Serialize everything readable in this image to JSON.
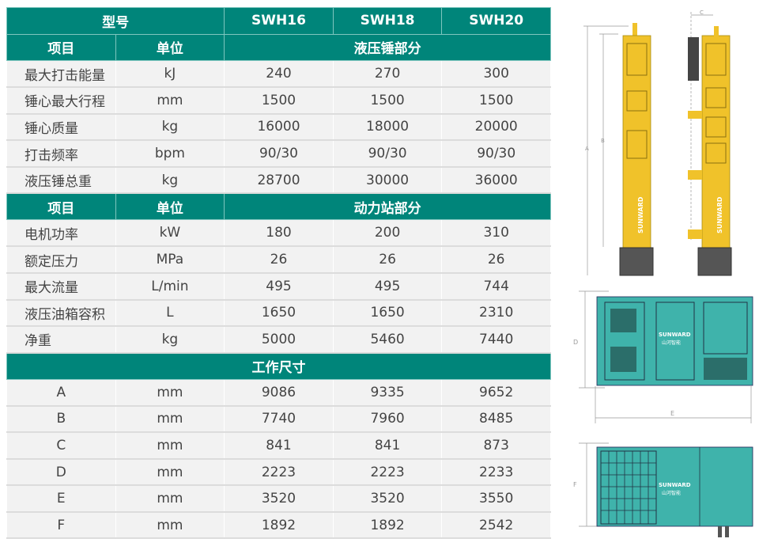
{
  "header": {
    "model_label": "型号",
    "models": [
      "SWH16",
      "SWH18",
      "SWH20"
    ]
  },
  "sections": [
    {
      "item_label": "项目",
      "unit_label": "单位",
      "title": "液压锤部分",
      "rows": [
        {
          "name": "最大打击能量",
          "unit": "kJ",
          "values": [
            "240",
            "270",
            "300"
          ]
        },
        {
          "name": "锤心最大行程",
          "unit": "mm",
          "values": [
            "1500",
            "1500",
            "1500"
          ]
        },
        {
          "name": "锤心质量",
          "unit": "kg",
          "values": [
            "16000",
            "18000",
            "20000"
          ]
        },
        {
          "name": "打击频率",
          "unit": "bpm",
          "values": [
            "90/30",
            "90/30",
            "90/30"
          ]
        },
        {
          "name": "液压锤总重",
          "unit": "kg",
          "values": [
            "28700",
            "30000",
            "36000"
          ]
        }
      ]
    },
    {
      "item_label": "项目",
      "unit_label": "单位",
      "title": "动力站部分",
      "rows": [
        {
          "name": "电机功率",
          "unit": "kW",
          "values": [
            "180",
            "200",
            "310"
          ]
        },
        {
          "name": "额定压力",
          "unit": "MPa",
          "values": [
            "26",
            "26",
            "26"
          ]
        },
        {
          "name": "最大流量",
          "unit": "L/min",
          "values": [
            "495",
            "495",
            "744"
          ]
        },
        {
          "name": "液压油箱容积",
          "unit": "L",
          "values": [
            "1650",
            "1650",
            "2310"
          ]
        },
        {
          "name": "净重",
          "unit": "kg",
          "values": [
            "5000",
            "5460",
            "7440"
          ]
        }
      ]
    },
    {
      "title": "工作尺寸",
      "rows": [
        {
          "name": "A",
          "unit": "mm",
          "values": [
            "9086",
            "9335",
            "9652"
          ]
        },
        {
          "name": "B",
          "unit": "mm",
          "values": [
            "7740",
            "7960",
            "8485"
          ]
        },
        {
          "name": "C",
          "unit": "mm",
          "values": [
            "841",
            "841",
            "873"
          ]
        },
        {
          "name": "D",
          "unit": "mm",
          "values": [
            "2223",
            "2223",
            "2233"
          ]
        },
        {
          "name": "E",
          "unit": "mm",
          "values": [
            "3520",
            "3520",
            "3550"
          ]
        },
        {
          "name": "F",
          "unit": "mm",
          "values": [
            "1892",
            "1892",
            "2542"
          ]
        }
      ]
    }
  ],
  "drawings": {
    "brand": "SUNWARD",
    "brand_cn": "山河智能",
    "dim_labels": [
      "A",
      "B",
      "C",
      "D",
      "E",
      "F"
    ]
  },
  "colors": {
    "header": "#00857a",
    "hammer": "#f0c22a",
    "station": "#3fb3ab"
  }
}
